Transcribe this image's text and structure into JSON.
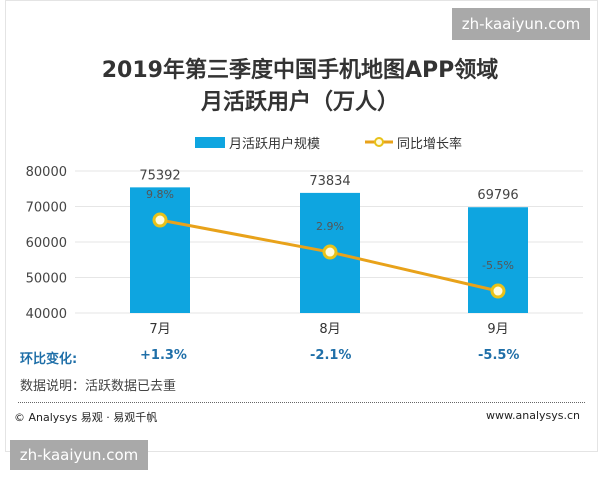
{
  "watermark_top": "zh-kaaiyun.com",
  "watermark_bottom": "zh-kaaiyun.com",
  "chart_data": {
    "type": "bar+line",
    "title_line1": "2019年第三季度中国手机地图APP领域",
    "title_line2": "月活跃用户（万人）",
    "categories": [
      "7月",
      "8月",
      "9月"
    ],
    "series": [
      {
        "name": "月活跃用户规模",
        "type": "bar",
        "values": [
          75392,
          73834,
          69796
        ],
        "labels": [
          "75392",
          "73834",
          "69796"
        ],
        "color": "#0ea5e0"
      },
      {
        "name": "同比增长率",
        "type": "line",
        "values": [
          9.8,
          2.9,
          -5.5
        ],
        "labels": [
          "9.8%",
          "2.9%",
          "-5.5%"
        ],
        "color": "#e8a21a"
      }
    ],
    "yticks": [
      "40000",
      "50000",
      "60000",
      "70000",
      "80000"
    ],
    "ylim": [
      40000,
      80000
    ],
    "grid": true,
    "legend": "top"
  },
  "mom": {
    "label": "环比变化:",
    "values": [
      "+1.3%",
      "-2.1%",
      "-5.5%"
    ]
  },
  "note": "数据说明：活跃数据已去重",
  "footer": {
    "left": "© Analysys 易观 · 易观千帆",
    "right": "www.analysys.cn"
  }
}
